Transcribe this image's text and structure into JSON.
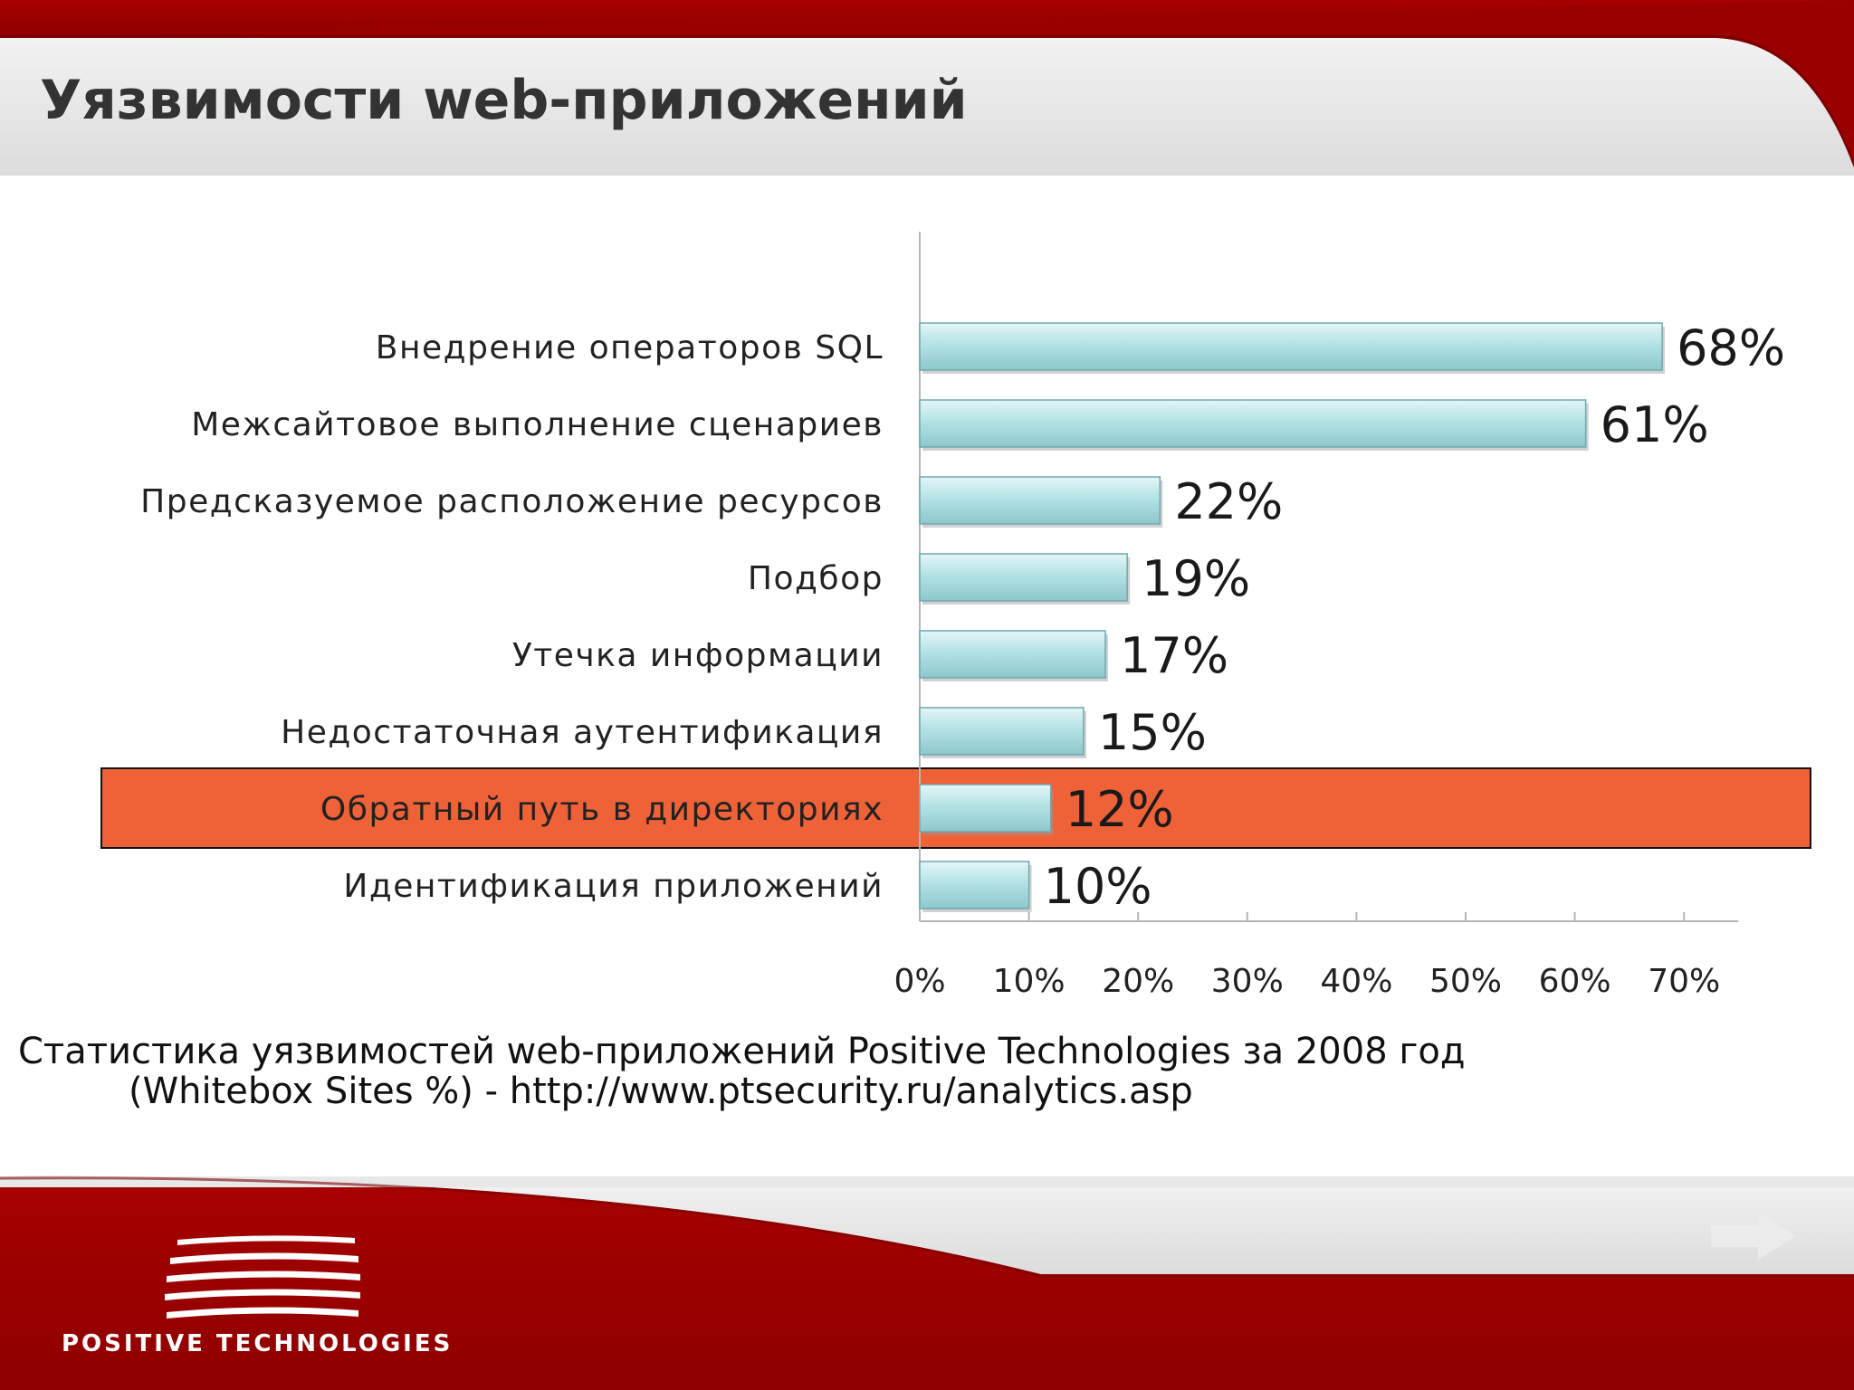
{
  "slide": {
    "title": "Уязвимости web-приложений",
    "caption_line1": "Статистика уязвимостей web-приложений Positive Technologies за 2008 год",
    "caption_line2": "(Whitebox Sites %) - http://www.ptsecurity.ru/analytics.asp",
    "logo_text": "POSITIVE TECHNOLOGIES",
    "next_icon": "arrow-right-icon"
  },
  "colors": {
    "header_red": "#9b0000",
    "header_gray": "#e3e3e3",
    "bar_fill": "#a9dcdf",
    "highlight": "#ef6237"
  },
  "chart_data": {
    "type": "bar",
    "orientation": "horizontal",
    "categories": [
      "Внедрение операторов SQL",
      "Межсайтовое выполнение сценариев",
      "Предсказуемое расположение ресурсов",
      "Подбор",
      "Утечка информации",
      "Недостаточная аутентификация",
      "Обратный путь в директориях",
      "Идентификация приложений"
    ],
    "values": [
      68,
      61,
      22,
      19,
      17,
      15,
      12,
      10
    ],
    "value_labels": [
      "68%",
      "61%",
      "22%",
      "19%",
      "17%",
      "15%",
      "12%",
      "10%"
    ],
    "highlighted_category": "Обратный путь в директориях",
    "xlim": [
      0,
      70
    ],
    "x_ticks": [
      0,
      10,
      20,
      30,
      40,
      50,
      60,
      70
    ],
    "x_tick_labels": [
      "0%",
      "10%",
      "20%",
      "30%",
      "40%",
      "50%",
      "60%",
      "70%"
    ],
    "grid": false,
    "legend": false
  }
}
